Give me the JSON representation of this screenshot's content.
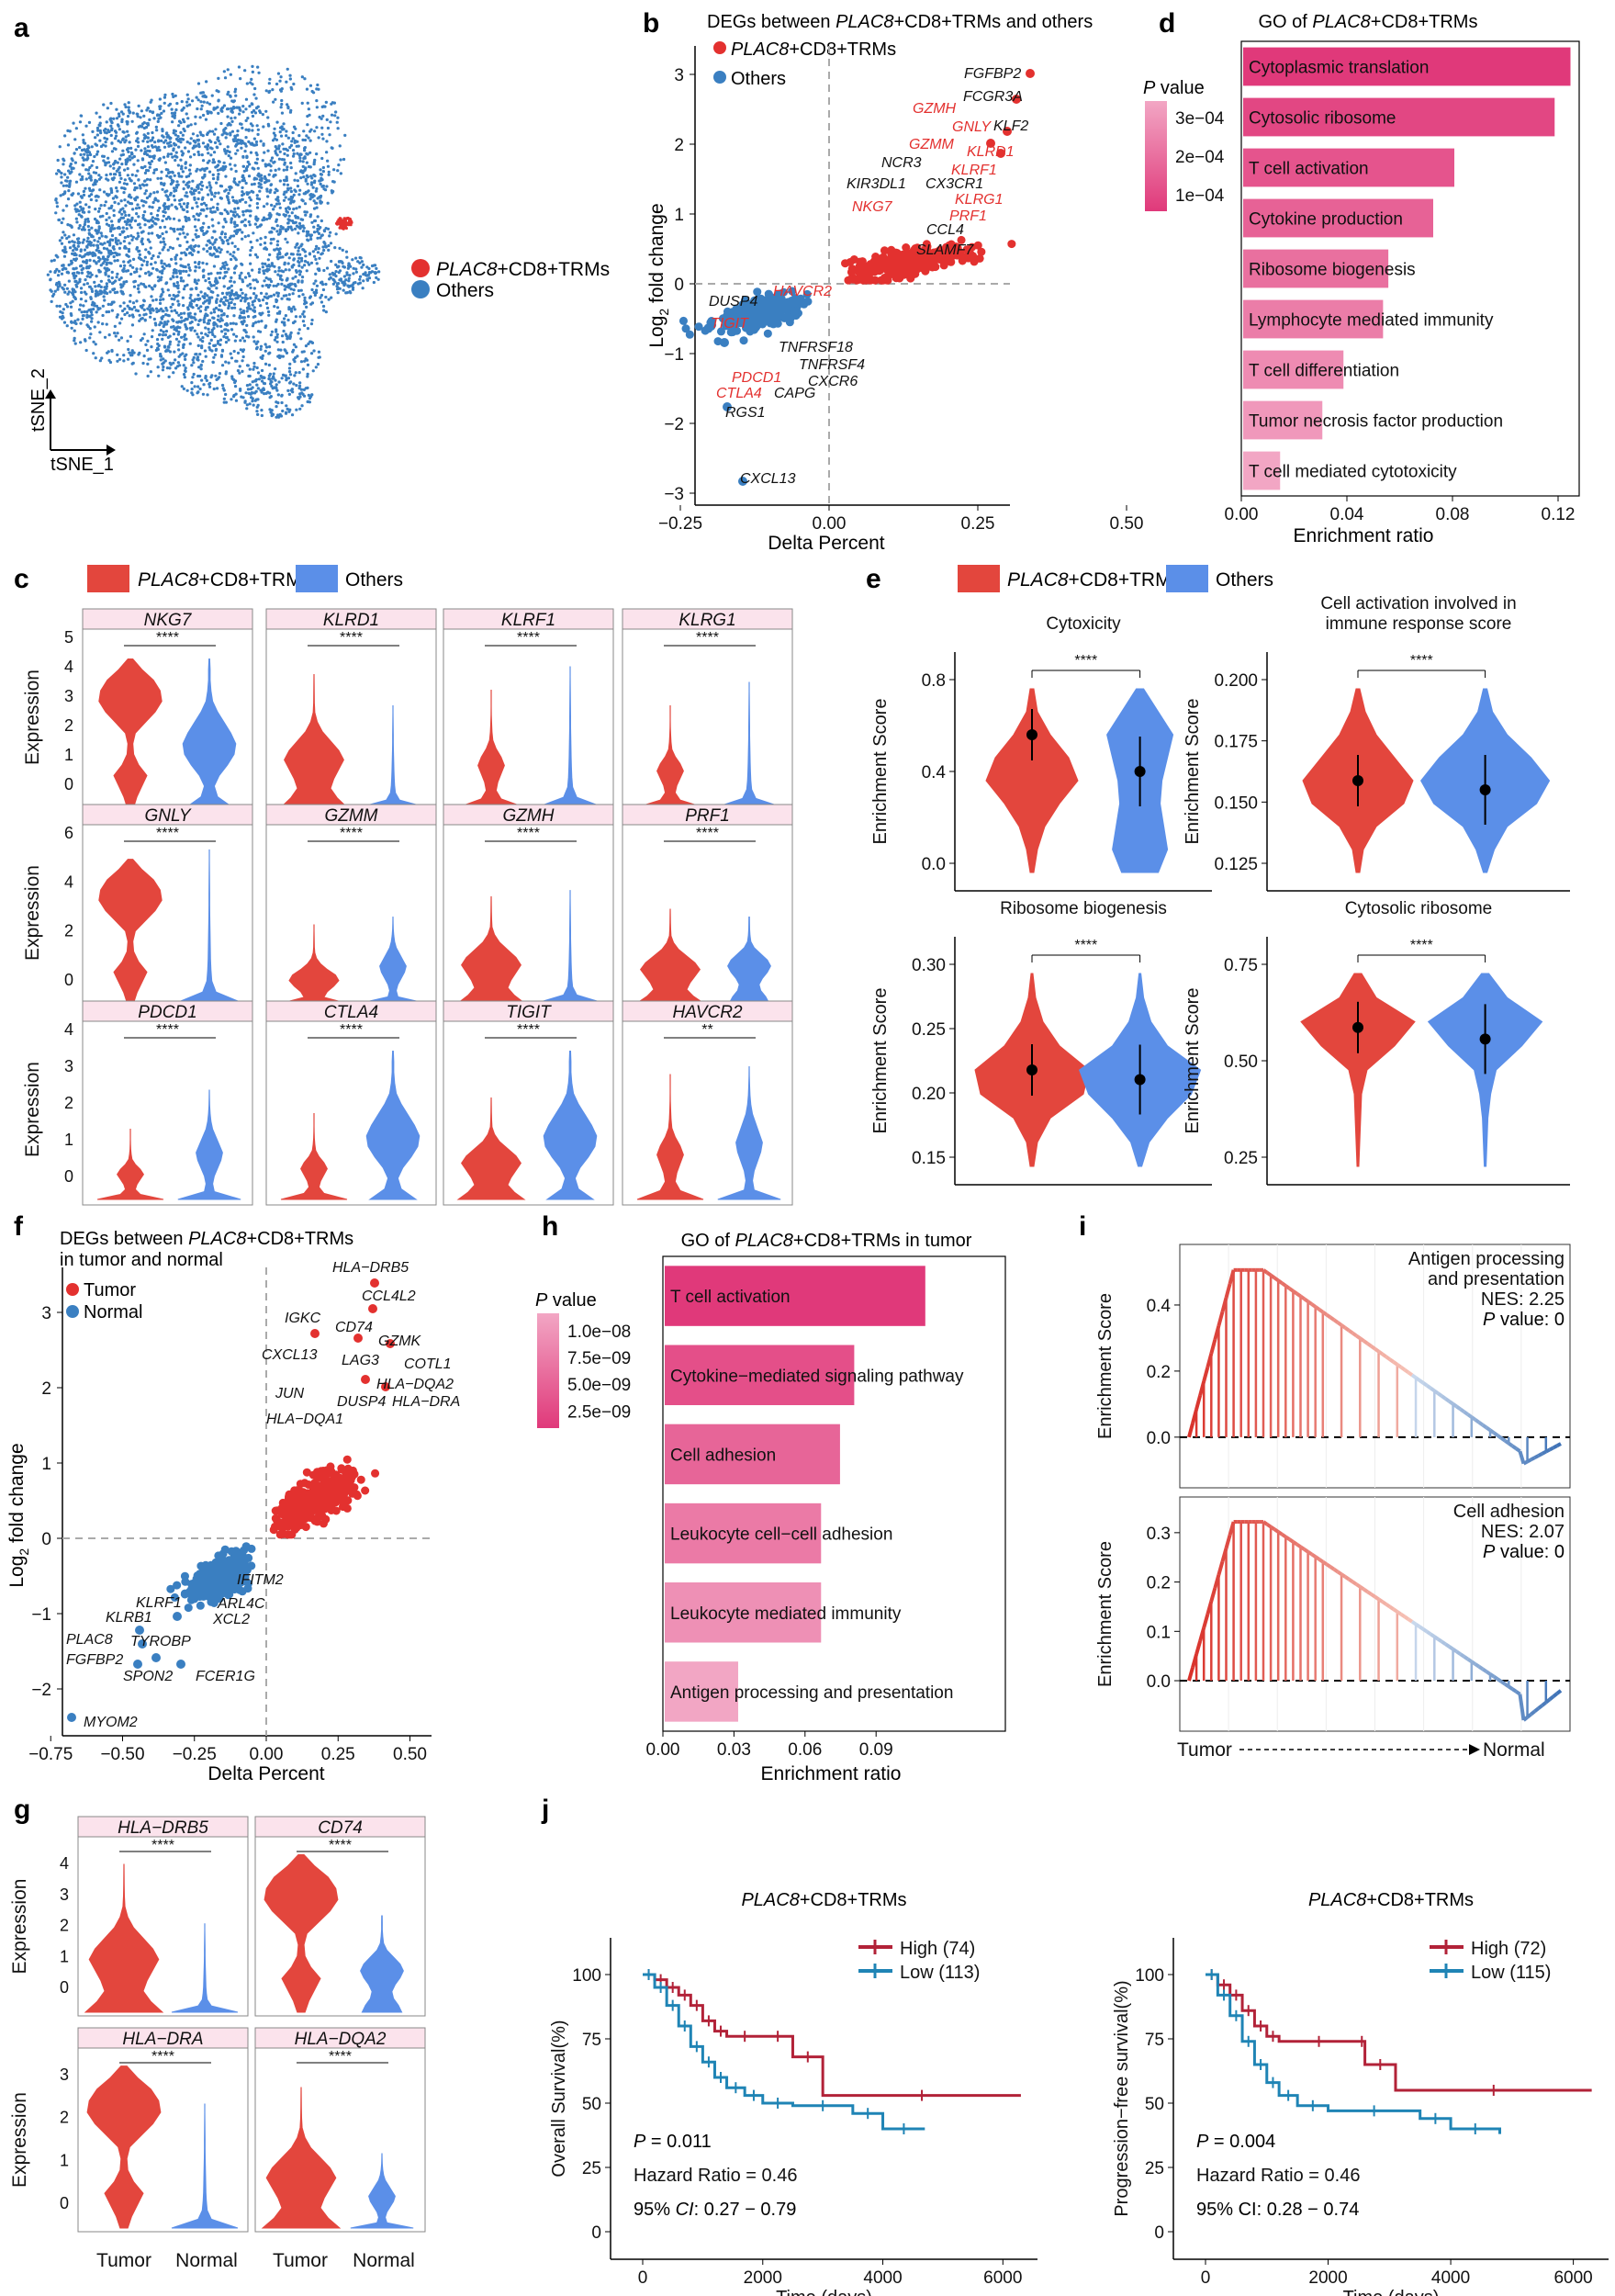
{
  "colors": {
    "red": "#e3312f",
    "blue": "#3a7fc1",
    "violinRed": "#e3463d",
    "violinBlue": "#5b8fe8",
    "survRed": "#b22238",
    "survBlue": "#1f84b5",
    "pinkDark": "#e0397a",
    "pinkLight": "#f2a6c4",
    "stripBg": "#fbe3ec"
  },
  "panelA": {
    "letter": "a",
    "legend": [
      {
        "label": "PLAC8+CD8+TRMs",
        "italic": "PLAC8",
        "rest": "+CD8+TRMs"
      },
      {
        "label": "Others"
      }
    ],
    "xaxis": "tSNE_1",
    "yaxis": "tSNE_2"
  },
  "panelB": {
    "letter": "b",
    "title_italic": "PLAC8",
    "title_pre": "DEGs between ",
    "title_post": "+CD8+TRMs and others",
    "legend": [
      {
        "italic": "PLAC8",
        "rest": "+CD8+TRMs"
      },
      {
        "rest": "Others"
      }
    ],
    "xlabel": "Delta Percent",
    "ylabel_pre": "Log",
    "ylabel_sub": "2",
    "ylabel_post": " fold change",
    "xticks": [
      "−0.25",
      "0.00",
      "0.25",
      "0.50"
    ],
    "yticks": [
      "3",
      "2",
      "1",
      "0",
      "−1",
      "−2",
      "−3"
    ],
    "labels_black": [
      "FGFBP2",
      "FCGR3A",
      "KLF2",
      "NCR3",
      "KIR3DL1",
      "CX3CR1",
      "CCL4",
      "SLAMF7",
      "DUSP4",
      "TNFRSF18",
      "TNFRSF4",
      "CXCR6",
      "CAPG",
      "RGS1",
      "CXCL13"
    ],
    "labels_red": [
      "GZMH",
      "GNLY",
      "GZMM",
      "KLRD1",
      "KLRF1",
      "KLRG1",
      "PRF1",
      "NKG7",
      "HAVCR2",
      "TIGIT",
      "PDCD1",
      "CTLA4"
    ]
  },
  "panelD": {
    "letter": "d",
    "title_pre": "GO of ",
    "title_italic": "PLAC8",
    "title_post": "+CD8+TRMs",
    "legend_title_italic": "P",
    "legend_title_rest": " value",
    "legend_ticks": [
      "3e−04",
      "2e−04",
      "1e−04"
    ],
    "xlabel": "Enrichment ratio",
    "xticks": [
      "0.00",
      "0.04",
      "0.08",
      "0.12"
    ],
    "terms": [
      {
        "label": "Cytoplasmic translation",
        "ratio": 0.124
      },
      {
        "label": "Cytosolic ribosome",
        "ratio": 0.118
      },
      {
        "label": "T cell activation",
        "ratio": 0.08
      },
      {
        "label": "Cytokine production",
        "ratio": 0.072
      },
      {
        "label": "Ribosome biogenesis",
        "ratio": 0.055
      },
      {
        "label": "Lymphocyte mediated immunity",
        "ratio": 0.053
      },
      {
        "label": "T cell differentiation",
        "ratio": 0.038
      },
      {
        "label": "Tumor necrosis factor production",
        "ratio": 0.03
      },
      {
        "label": "T cell mediated cytotoxicity",
        "ratio": 0.014
      }
    ]
  },
  "panelC": {
    "letter": "c",
    "legend": [
      {
        "italic": "PLAC8",
        "rest": "+CD8+TRMs"
      },
      {
        "rest": "Others"
      }
    ],
    "ylabel": "Expression",
    "rows": [
      {
        "yticks": [
          "5",
          "4",
          "3",
          "2",
          "1",
          "0"
        ],
        "genes": [
          "NKG7",
          "KLRD1",
          "KLRF1",
          "KLRG1"
        ],
        "sig": [
          "****",
          "****",
          "****",
          "****"
        ]
      },
      {
        "yticks": [
          "6",
          "4",
          "2",
          "0"
        ],
        "genes": [
          "GNLY",
          "GZMM",
          "GZMH",
          "PRF1"
        ],
        "sig": [
          "****",
          "****",
          "****",
          "****"
        ]
      },
      {
        "yticks": [
          "4",
          "3",
          "2",
          "1",
          "0"
        ],
        "genes": [
          "PDCD1",
          "CTLA4",
          "TIGIT",
          "HAVCR2"
        ],
        "sig": [
          "****",
          "****",
          "****",
          "**"
        ]
      }
    ]
  },
  "panelE": {
    "letter": "e",
    "legend": [
      {
        "italic": "PLAC8",
        "rest": "+CD8+TRMs"
      },
      {
        "rest": "Others"
      }
    ],
    "ylabel": "Enrichment Score",
    "plots": [
      {
        "title": "Cytoxicity",
        "title2": "",
        "yticks": [
          "0.8",
          "0.4",
          "0.0"
        ],
        "sig": "****"
      },
      {
        "title": "Cell activation involved in",
        "title2": "immune response score",
        "yticks": [
          "0.200",
          "0.175",
          "0.150",
          "0.125"
        ],
        "sig": "****"
      },
      {
        "title": "Ribosome biogenesis",
        "title2": "",
        "yticks": [
          "0.30",
          "0.25",
          "0.20",
          "0.15"
        ],
        "sig": "****"
      },
      {
        "title": "Cytosolic ribosome",
        "title2": "",
        "yticks": [
          "0.75",
          "0.50",
          "0.25"
        ],
        "sig": "****"
      }
    ]
  },
  "panelF": {
    "letter": "f",
    "title_pre": "DEGs between ",
    "title_italic": "PLAC8",
    "title_post": "+CD8+TRMs",
    "title2": "in tumor and normal",
    "legend": [
      "Tumor",
      "Normal"
    ],
    "xlabel": "Delta Percent",
    "ylabel_pre": "Log",
    "ylabel_sub": "2",
    "ylabel_post": " fold change",
    "xticks": [
      "−0.75",
      "−0.50",
      "−0.25",
      "0.00",
      "0.25",
      "0.50"
    ],
    "yticks": [
      "3",
      "2",
      "1",
      "0",
      "−1",
      "−2"
    ],
    "labels": [
      "HLA−DRB5",
      "CCL4L2",
      "IGKC",
      "CD74",
      "GZMK",
      "CXCL13",
      "LAG3",
      "COTL1",
      "HLA−DQA2",
      "JUN",
      "DUSP4",
      "HLA−DRA",
      "HLA−DQA1",
      "IFITM2",
      "KLRF1",
      "ARL4C",
      "KLRB1",
      "XCL2",
      "PLAC8",
      "TYROBP",
      "FGFBP2",
      "SPON2",
      "FCER1G",
      "MYOM2"
    ]
  },
  "panelH": {
    "letter": "h",
    "title_pre": "GO of ",
    "title_italic": "PLAC8",
    "title_post": "+CD8+TRMs in tumor",
    "legend_title_italic": "P",
    "legend_title_rest": " value",
    "legend_ticks": [
      "1.0e−08",
      "7.5e−09",
      "5.0e−09",
      "2.5e−09"
    ],
    "xlabel": "Enrichment ratio",
    "xticks": [
      "0.00",
      "0.03",
      "0.06",
      "0.09"
    ],
    "terms": [
      {
        "label": "T cell activation",
        "ratio": 0.11
      },
      {
        "label": "Cytokine−mediated signaling pathway",
        "ratio": 0.08
      },
      {
        "label": "Cell adhesion",
        "ratio": 0.074
      },
      {
        "label": "Leukocyte cell−cell adhesion",
        "ratio": 0.066
      },
      {
        "label": "Leukocyte mediated immunity",
        "ratio": 0.066
      },
      {
        "label": "Antigen processing and presentation",
        "ratio": 0.031
      }
    ]
  },
  "panelI": {
    "letter": "i",
    "ylabel": "Enrichment Score",
    "top": {
      "title1": "Antigen processing",
      "title2": "and presentation",
      "nes": "NES: 2.25",
      "p_italic": "P",
      "p_rest": " value: 0",
      "yticks": [
        "0.4",
        "0.2",
        "0.0"
      ]
    },
    "bottom": {
      "title1": "Cell adhesion",
      "nes": "NES: 2.07",
      "p_italic": "P",
      "p_rest": " value: 0",
      "yticks": [
        "0.3",
        "0.2",
        "0.1",
        "0.0"
      ]
    },
    "xleft": "Tumor",
    "xright": "Normal"
  },
  "panelG": {
    "letter": "g",
    "ylabel": "Expression",
    "genes": [
      "HLA−DRB5",
      "CD74",
      "HLA−DRA",
      "HLA−DQA2"
    ],
    "yticks_top": [
      "4",
      "3",
      "2",
      "1",
      "0"
    ],
    "yticks_bottom": [
      "3",
      "2",
      "1",
      "0"
    ],
    "sig": "****",
    "groups": [
      "Tumor",
      "Normal"
    ]
  },
  "panelJ": {
    "letter": "j",
    "xlabel": "Time (days)",
    "xticks": [
      "0",
      "2000",
      "4000",
      "6000"
    ],
    "yticks": [
      "100",
      "75",
      "50",
      "25",
      "0"
    ],
    "plots": [
      {
        "title_italic": "PLAC8",
        "title_rest": "+CD8+TRMs",
        "ylabel": "Overall Survival(%)",
        "high": "High (74)",
        "low": "Low (113)",
        "p_italic": "P",
        "p_rest": " = 0.011",
        "hr": "Hazard Ratio = 0.46",
        "ci_pre": "95% ",
        "ci_italic": "CI",
        "ci_post": ": 0.27 − 0.79"
      },
      {
        "title_italic": "PLAC8",
        "title_rest": "+CD8+TRMs",
        "ylabel": "Progression−free survival(%)",
        "high": "High (72)",
        "low": "Low (115)",
        "p_italic": "P",
        "p_rest": " = 0.004",
        "hr": "Hazard Ratio = 0.46",
        "ci_pre": "95% CI: ",
        "ci_italic": "",
        "ci_post": "0.28 − 0.74"
      }
    ]
  }
}
